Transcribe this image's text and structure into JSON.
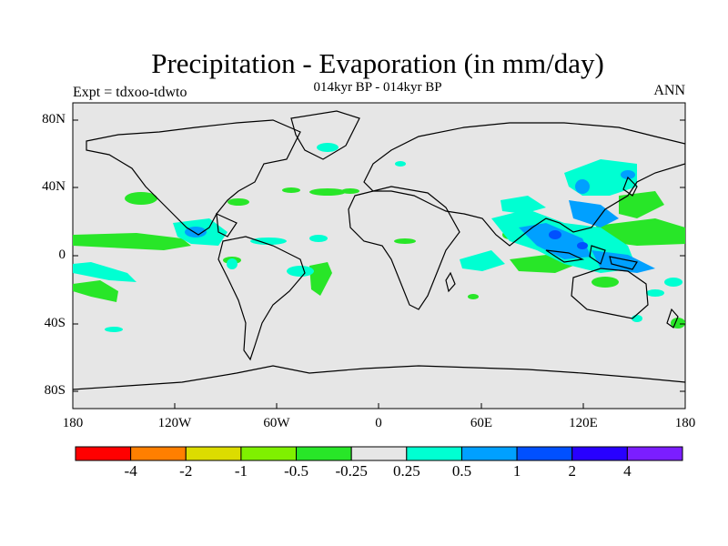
{
  "title": "Precipitation - Evaporation (in mm/day)",
  "subtitle": "014kyr BP - 014kyr BP",
  "left_label": "Expt = tdxoo-tdwto",
  "right_label": "ANN",
  "map": {
    "y_ticks": [
      "80N",
      "40N",
      "0",
      "40S",
      "80S"
    ],
    "x_ticks": [
      "180",
      "120W",
      "60W",
      "0",
      "60E",
      "120E",
      "180"
    ],
    "background_color": "#e6e6e6"
  },
  "colorbar": {
    "colors": [
      "#ff0000",
      "#ff7f00",
      "#dcdc00",
      "#7ff000",
      "#28e628",
      "#e6e6e6",
      "#00ffd2",
      "#00a0ff",
      "#0050ff",
      "#2800ff",
      "#7b1eff"
    ],
    "labels": [
      "-4",
      "-2",
      "-1",
      "-0.5",
      "-0.25",
      "0.25",
      "0.5",
      "1",
      "2",
      "4"
    ]
  }
}
